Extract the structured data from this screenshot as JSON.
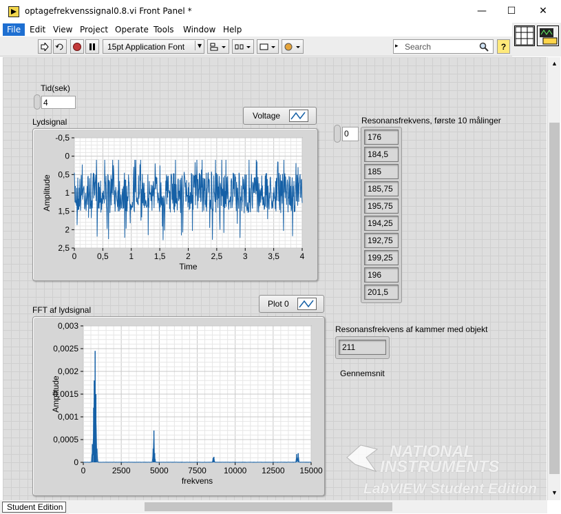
{
  "window": {
    "title": "optagefrekvenssignal0.8.vi Front Panel *",
    "minimize": "—",
    "maximize": "☐",
    "close": "✕"
  },
  "menu": [
    "File",
    "Edit",
    "View",
    "Project",
    "Operate",
    "Tools",
    "Window",
    "Help"
  ],
  "toolbar": {
    "font": "15pt Application Font",
    "search_placeholder": "Search",
    "help": "?"
  },
  "controls": {
    "tid_label": "Tid(sek)",
    "tid_value": "4",
    "array_index": "0",
    "array_label": "Resonansfrekvens, første 10 målinger",
    "array_values": [
      "176",
      "184,5",
      "185",
      "185,75",
      "195,75",
      "194,25",
      "192,75",
      "199,25",
      "196",
      "201,5"
    ],
    "object_label": "Resonansfrekvens af kammer med objekt",
    "object_value": "211",
    "gennemsnit_label": "Gennemsnit"
  },
  "colors": {
    "plot": "#1560a6",
    "menu_active": "#1e6fd1",
    "panel": "#dedede"
  },
  "chart_data": [
    {
      "type": "line",
      "title": "Lydsignal",
      "legend": "Voltage",
      "xlabel": "Time",
      "ylabel": "Amplitude",
      "xlim": [
        0,
        4
      ],
      "ylim": [
        -0.5,
        2.5
      ],
      "y_inverted": true,
      "x_ticks": [
        "0",
        "0,5",
        "1",
        "1,5",
        "2",
        "2,5",
        "3",
        "3,5",
        "4"
      ],
      "y_ticks": [
        "-0,5",
        "0",
        "0,5",
        "1",
        "1,5",
        "2",
        "2,5"
      ],
      "series": [
        {
          "center": 1.0,
          "band": [
            0.5,
            1.5
          ],
          "min": 0.1,
          "max": 2.3
        }
      ]
    },
    {
      "type": "line",
      "title": "FFT af lydsignal",
      "legend": "Plot 0",
      "xlabel": "frekvens",
      "ylabel": "Amplitude",
      "xlim": [
        0,
        15000
      ],
      "ylim": [
        0,
        0.003
      ],
      "x_ticks": [
        "0",
        "2500",
        "5000",
        "7500",
        "10000",
        "12500",
        "15000"
      ],
      "y_ticks": [
        "0,003",
        "0,0025",
        "0,002",
        "0,0015",
        "0,001",
        "0,0005",
        "0"
      ],
      "series": [
        {
          "peaks": [
            [
              600,
              0.0004
            ],
            [
              680,
              0.0012
            ],
            [
              720,
              0.0018
            ],
            [
              780,
              0.00245
            ],
            [
              830,
              0.0015
            ],
            [
              900,
              0.0003
            ],
            [
              4600,
              0.0003
            ],
            [
              4650,
              0.0007
            ],
            [
              4700,
              0.0002
            ],
            [
              8550,
              0.0001
            ],
            [
              8600,
              0.00012
            ],
            [
              14050,
              0.00018
            ],
            [
              14150,
              0.0002
            ]
          ]
        }
      ]
    }
  ],
  "status": {
    "edition": "Student Edition"
  },
  "watermark": {
    "line1": "NATIONAL",
    "line2": "INSTRUMENTS",
    "line3": "LabVIEW Student Edition"
  }
}
